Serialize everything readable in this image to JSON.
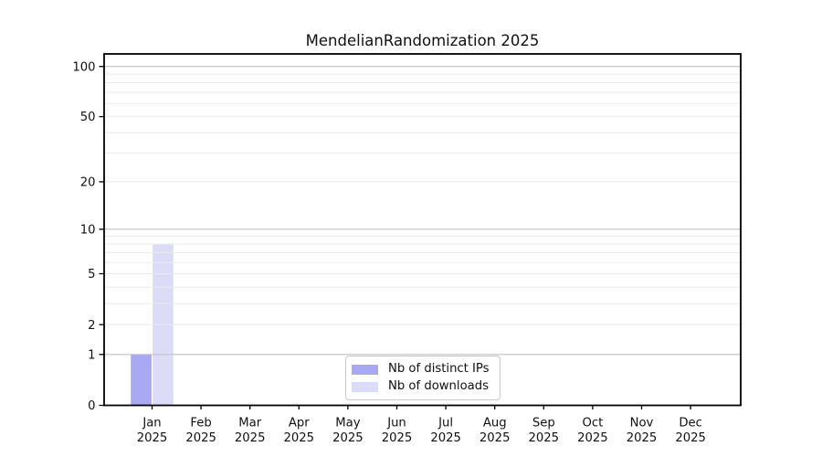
{
  "chart_data": {
    "type": "bar",
    "title": "MendelianRandomization 2025",
    "x_month_labels": [
      "Jan",
      "Feb",
      "Mar",
      "Apr",
      "May",
      "Jun",
      "Jul",
      "Aug",
      "Sep",
      "Oct",
      "Nov",
      "Dec"
    ],
    "x_year_label": "2025",
    "series": [
      {
        "name": "Nb of distinct IPs",
        "color": "#a9a9f3",
        "values": [
          1,
          0,
          0,
          0,
          0,
          0,
          0,
          0,
          0,
          0,
          0,
          0
        ]
      },
      {
        "name": "Nb of downloads",
        "color": "#dcdcf8",
        "values": [
          8,
          0,
          0,
          0,
          0,
          0,
          0,
          0,
          0,
          0,
          0,
          0
        ]
      }
    ],
    "y_ticks": [
      0,
      1,
      2,
      5,
      10,
      20,
      50,
      100
    ],
    "y_scale": "log10(1+x)",
    "ylim": [
      0,
      119
    ],
    "major_grid_values": [
      1,
      10,
      100
    ],
    "minor_grid_values": [
      2,
      3,
      4,
      5,
      6,
      7,
      8,
      9,
      20,
      30,
      40,
      50,
      60,
      70,
      80,
      90
    ],
    "grid": "horizontal",
    "legend_position": "lower center",
    "colors": {
      "distinct_ips_bar": "#a9a9f3",
      "downloads_bar": "#dcdcf8",
      "major_grid": "#c3c3c3",
      "minor_grid": "#ebebeb",
      "axis": "#000000",
      "tick_text": "#111111",
      "legend_border": "#c9c9c9",
      "background": "#ffffff"
    }
  }
}
